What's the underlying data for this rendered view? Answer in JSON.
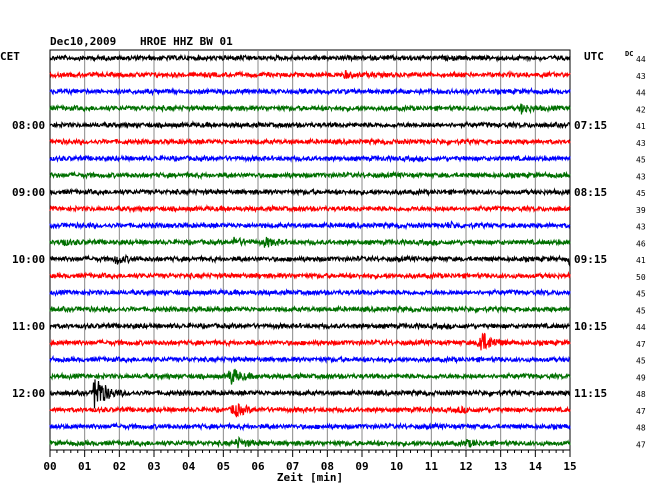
{
  "header": {
    "date": "Dec10,2009",
    "station": "HROE HHZ BW 01",
    "left_zone": "CET",
    "right_zone": "UTC",
    "dc_label": "DC"
  },
  "chart_data": {
    "type": "seismogram-helicorder",
    "xlabel": "Zeit [min]",
    "x_ticks": [
      "00",
      "01",
      "02",
      "03",
      "04",
      "05",
      "06",
      "07",
      "08",
      "09",
      "10",
      "11",
      "12",
      "13",
      "14",
      "15"
    ],
    "xlim": [
      0,
      15
    ],
    "trace_colors": [
      "#000000",
      "#ff0000",
      "#0000ff",
      "#007000"
    ],
    "left_hour_labels": [
      {
        "row": 4,
        "text": "08:00"
      },
      {
        "row": 8,
        "text": "09:00"
      },
      {
        "row": 12,
        "text": "10:00"
      },
      {
        "row": 16,
        "text": "11:00"
      },
      {
        "row": 20,
        "text": "12:00"
      }
    ],
    "right_hour_labels": [
      {
        "row": 4,
        "text": "07:15"
      },
      {
        "row": 8,
        "text": "08:15"
      },
      {
        "row": 12,
        "text": "09:15"
      },
      {
        "row": 16,
        "text": "10:15"
      },
      {
        "row": 20,
        "text": "11:15"
      }
    ],
    "dc_values": [
      "44",
      "43",
      "44",
      "42",
      "41",
      "43",
      "45",
      "43",
      "45",
      "39",
      "43",
      "46",
      "41",
      "50",
      "45",
      "45",
      "44",
      "47",
      "45",
      "49",
      "48",
      "47",
      "48",
      "47"
    ],
    "events": [
      {
        "row": 1,
        "minute": 8.5,
        "amplitude": 0.2
      },
      {
        "row": 3,
        "minute": 13.6,
        "amplitude": 0.3
      },
      {
        "row": 10,
        "minute": 11.5,
        "amplitude": 0.15
      },
      {
        "row": 11,
        "minute": 0.3,
        "amplitude": 0.2
      },
      {
        "row": 11,
        "minute": 5.3,
        "amplitude": 0.25
      },
      {
        "row": 11,
        "minute": 6.2,
        "amplitude": 0.3
      },
      {
        "row": 12,
        "minute": 1.9,
        "amplitude": 0.3
      },
      {
        "row": 12,
        "minute": 15.0,
        "amplitude": 0.4
      },
      {
        "row": 17,
        "minute": 12.4,
        "amplitude": 0.9
      },
      {
        "row": 19,
        "minute": 5.2,
        "amplitude": 0.6
      },
      {
        "row": 20,
        "minute": 1.3,
        "amplitude": 1.4
      },
      {
        "row": 21,
        "minute": 5.3,
        "amplitude": 0.5
      },
      {
        "row": 21,
        "minute": 11.8,
        "amplitude": 0.15
      },
      {
        "row": 23,
        "minute": 5.4,
        "amplitude": 0.3
      },
      {
        "row": 23,
        "minute": 12.0,
        "amplitude": 0.2
      }
    ]
  }
}
